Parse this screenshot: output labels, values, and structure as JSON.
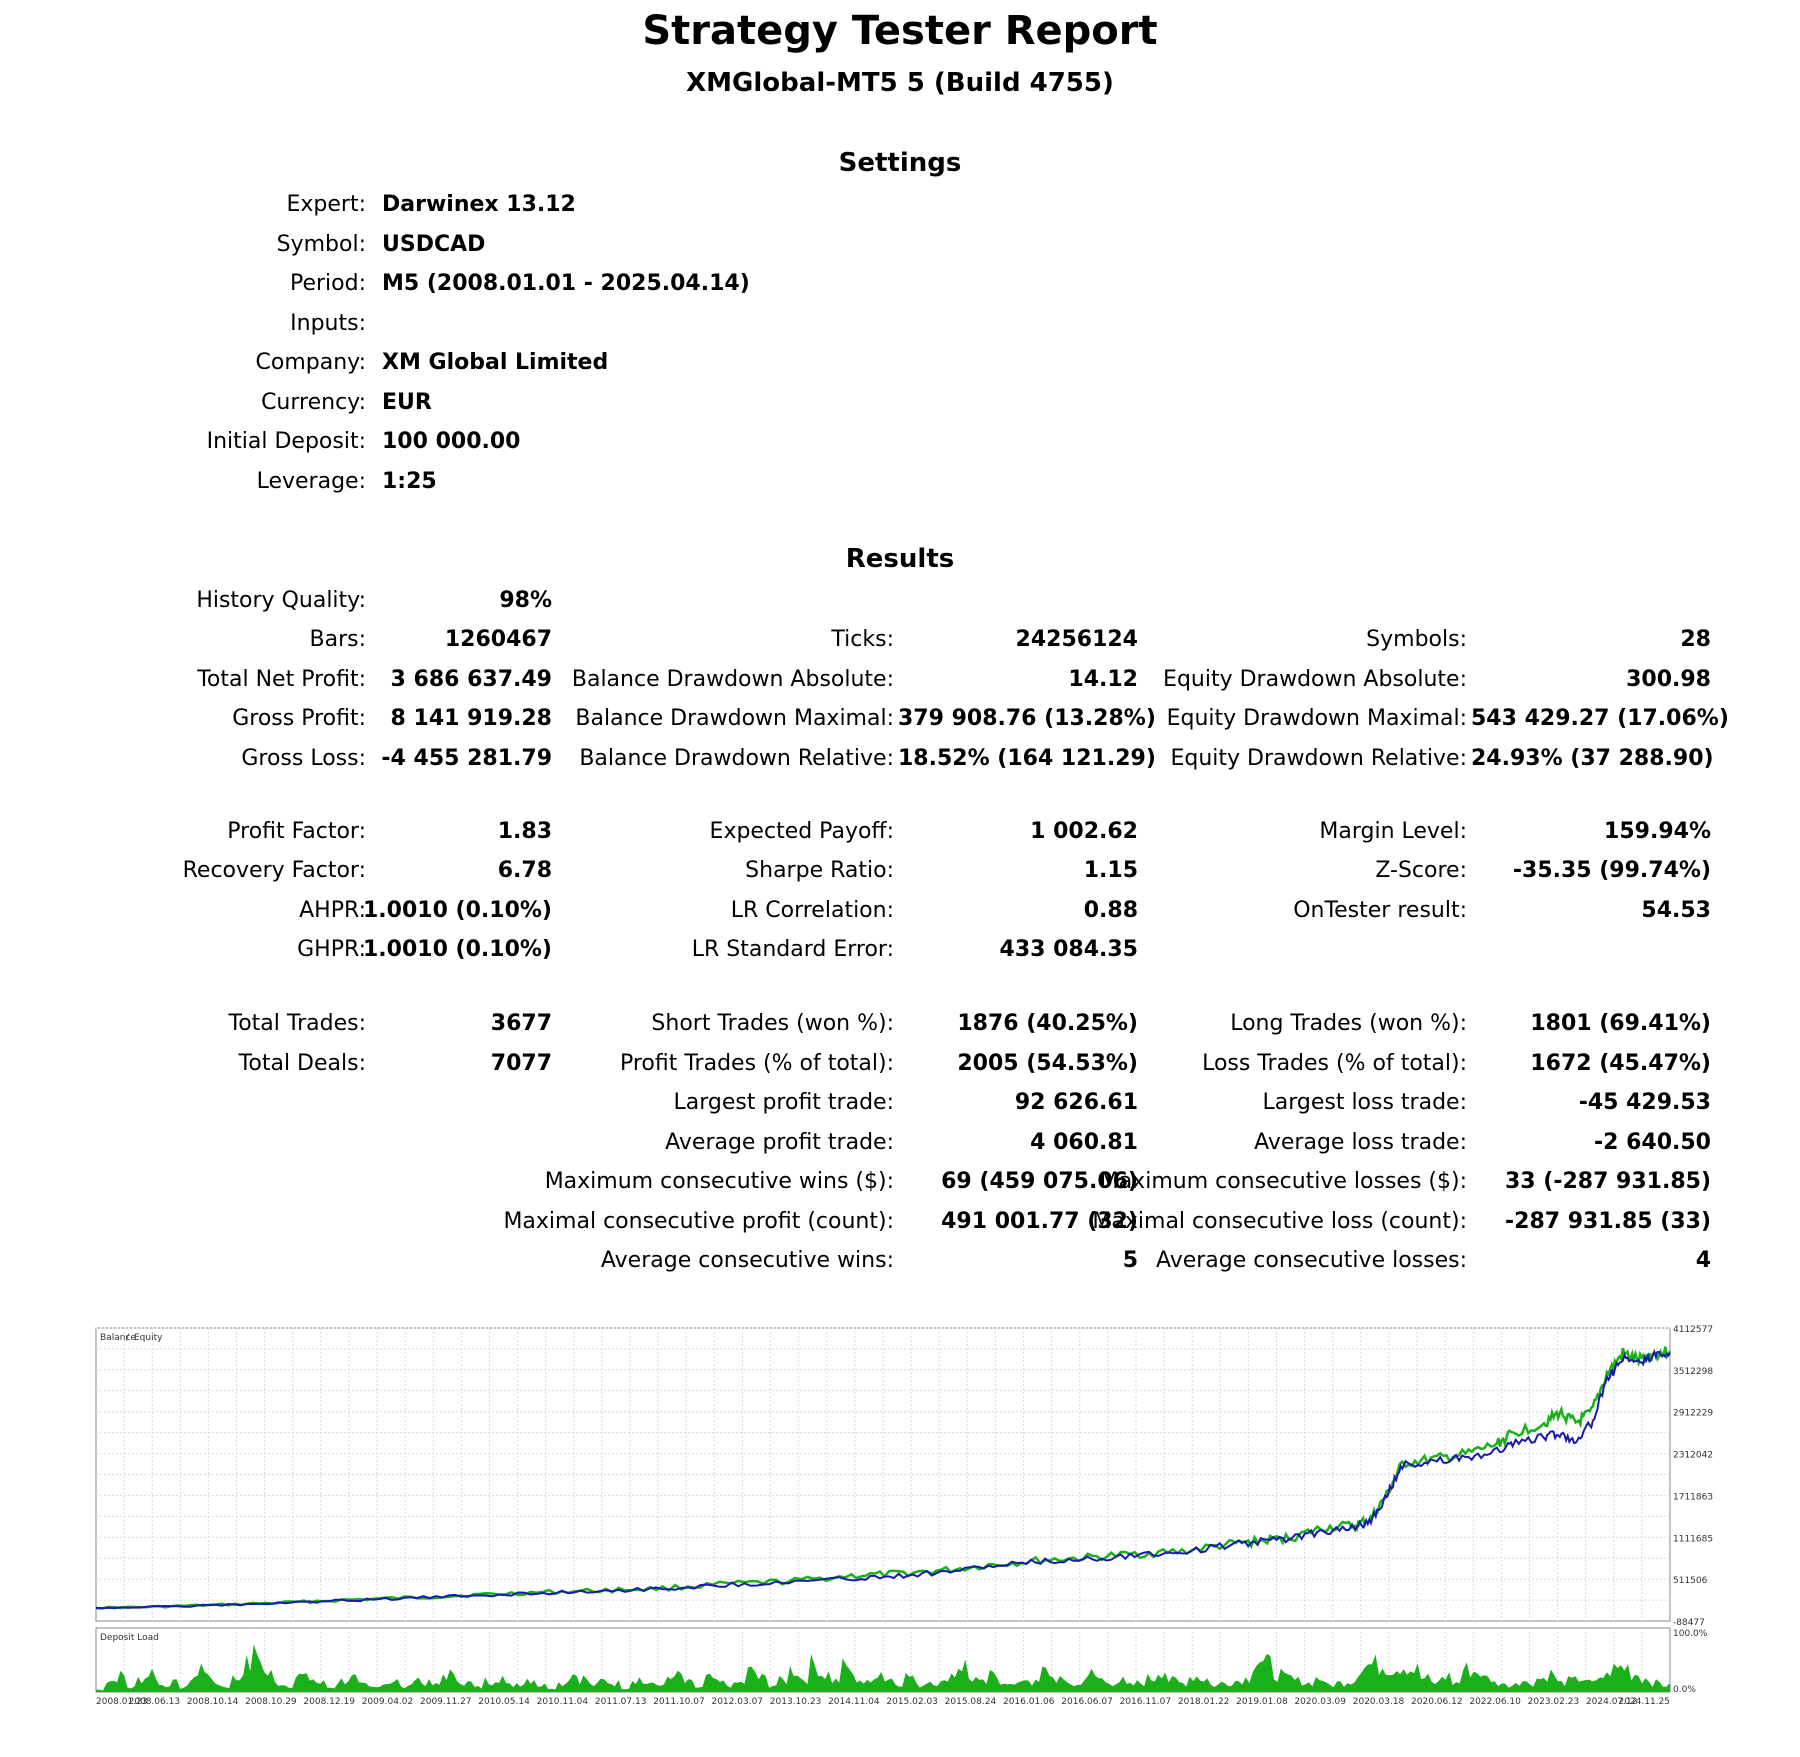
{
  "header": {
    "title": "Strategy Tester Report",
    "subtitle": "XMGlobal-MT5 5 (Build 4755)"
  },
  "settings": {
    "heading": "Settings",
    "rows": [
      {
        "label": "Expert:",
        "value": "Darwinex 13.12"
      },
      {
        "label": "Symbol:",
        "value": "USDCAD"
      },
      {
        "label": "Period:",
        "value": "M5 (2008.01.01 - 2025.04.14)"
      },
      {
        "label": "Inputs:",
        "value": ""
      },
      {
        "label": "Company:",
        "value": "XM Global Limited"
      },
      {
        "label": "Currency:",
        "value": "EUR"
      },
      {
        "label": "Initial Deposit:",
        "value": "100 000.00"
      },
      {
        "label": "Leverage:",
        "value": "1:25"
      }
    ]
  },
  "results": {
    "heading": "Results",
    "col1": [
      {
        "label": "History Quality:",
        "value": "98%"
      },
      {
        "label": "Bars:",
        "value": "1260467"
      },
      {
        "label": "Total Net Profit:",
        "value": "3 686 637.49"
      },
      {
        "label": "Gross Profit:",
        "value": "8 141 919.28"
      },
      {
        "label": "Gross Loss:",
        "value": "-4 455 281.79"
      },
      {
        "label": "Profit Factor:",
        "value": "1.83"
      },
      {
        "label": "Recovery Factor:",
        "value": "6.78"
      },
      {
        "label": "AHPR:",
        "value": "1.0010 (0.10%)"
      },
      {
        "label": "GHPR:",
        "value": "1.0010 (0.10%)"
      },
      {
        "label": "Total Trades:",
        "value": "3677"
      },
      {
        "label": "Total Deals:",
        "value": "7077"
      }
    ],
    "col2": [
      {
        "label": "Ticks:",
        "value": "24256124"
      },
      {
        "label": "Balance Drawdown Absolute:",
        "value": "14.12"
      },
      {
        "label": "Balance Drawdown Maximal:",
        "value": "379 908.76 (13.28%)"
      },
      {
        "label": "Balance Drawdown Relative:",
        "value": "18.52% (164 121.29)"
      },
      {
        "label": "Expected Payoff:",
        "value": "1 002.62"
      },
      {
        "label": "Sharpe Ratio:",
        "value": "1.15"
      },
      {
        "label": "LR Correlation:",
        "value": "0.88"
      },
      {
        "label": "LR Standard Error:",
        "value": "433 084.35"
      },
      {
        "label": "Short Trades (won %):",
        "value": "1876 (40.25%)"
      },
      {
        "label": "Profit Trades (% of total):",
        "value": "2005 (54.53%)"
      },
      {
        "label": "Largest profit trade:",
        "value": "92 626.61"
      },
      {
        "label": "Average profit trade:",
        "value": "4 060.81"
      },
      {
        "label": "Maximum consecutive wins ($):",
        "value": "69 (459 075.06)"
      },
      {
        "label": "Maximal consecutive profit (count):",
        "value": "491 001.77 (32)"
      },
      {
        "label": "Average consecutive wins:",
        "value": "5"
      }
    ],
    "col3": [
      {
        "label": "Symbols:",
        "value": "28"
      },
      {
        "label": "Equity Drawdown Absolute:",
        "value": "300.98"
      },
      {
        "label": "Equity Drawdown Maximal:",
        "value": "543 429.27 (17.06%)"
      },
      {
        "label": "Equity Drawdown Relative:",
        "value": "24.93% (37 288.90)"
      },
      {
        "label": "Margin Level:",
        "value": "159.94%"
      },
      {
        "label": "Z-Score:",
        "value": "-35.35 (99.74%)"
      },
      {
        "label": "OnTester result:",
        "value": "54.53"
      },
      {
        "label": "Long Trades (won %):",
        "value": "1801 (69.41%)"
      },
      {
        "label": "Loss Trades (% of total):",
        "value": "1672 (45.47%)"
      },
      {
        "label": "Largest loss trade:",
        "value": "-45 429.53"
      },
      {
        "label": "Average loss trade:",
        "value": "-2 640.50"
      },
      {
        "label": "Maximum consecutive losses ($):",
        "value": "33 (-287 931.85)"
      },
      {
        "label": "Maximal consecutive loss (count):",
        "value": "-287 931.85 (33)"
      },
      {
        "label": "Average consecutive losses:",
        "value": "4"
      }
    ]
  },
  "chart_data": {
    "type": "line",
    "legend": {
      "balance": "Balance",
      "separator": " / ",
      "equity": "Equity"
    },
    "legend_position": "top-left",
    "colors": {
      "balance": "#1a1aa8",
      "equity": "#19b019",
      "load": "#19b019",
      "grid": "#d9d9d9"
    },
    "grid": true,
    "ylim": [
      -88477,
      4112577
    ],
    "y_ticks": [
      "4112577",
      "3512298",
      "2912229",
      "2312042",
      "1711863",
      "1111685",
      "511506",
      "-88477"
    ],
    "x_ticks": [
      "2008.01.23",
      "2008.06.13",
      "2008.10.14",
      "2008.10.29",
      "2008.12.19",
      "2009.04.02",
      "2009.11.27",
      "2010.05.14",
      "2010.11.04",
      "2011.07.13",
      "2011.10.07",
      "2012.03.07",
      "2013.10.23",
      "2014.11.04",
      "2015.02.03",
      "2015.08.24",
      "2016.01.06",
      "2016.06.07",
      "2016.11.07",
      "2018.01.22",
      "2019.01.08",
      "2020.03.09",
      "2020.03.18",
      "2020.06.12",
      "2022.06.10",
      "2023.02.23",
      "2024.07.12",
      "2024.11.25"
    ],
    "balance_equity": [
      [
        0.0,
        100000,
        100000
      ],
      [
        0.04,
        115000,
        116000
      ],
      [
        0.08,
        140000,
        145000
      ],
      [
        0.12,
        170000,
        175000
      ],
      [
        0.16,
        205000,
        215000
      ],
      [
        0.2,
        240000,
        245000
      ],
      [
        0.24,
        275000,
        285000
      ],
      [
        0.28,
        310000,
        320000
      ],
      [
        0.32,
        345000,
        350000
      ],
      [
        0.36,
        375000,
        380000
      ],
      [
        0.4,
        430000,
        440000
      ],
      [
        0.44,
        470000,
        480000
      ],
      [
        0.48,
        520000,
        560000
      ],
      [
        0.51,
        560000,
        590000
      ],
      [
        0.54,
        620000,
        640000
      ],
      [
        0.57,
        700000,
        720000
      ],
      [
        0.6,
        760000,
        780000
      ],
      [
        0.63,
        800000,
        820000
      ],
      [
        0.66,
        860000,
        870000
      ],
      [
        0.69,
        900000,
        910000
      ],
      [
        0.72,
        1000000,
        1010000
      ],
      [
        0.74,
        1050000,
        1060000
      ],
      [
        0.76,
        1100000,
        1110000
      ],
      [
        0.78,
        1200000,
        1250000
      ],
      [
        0.8,
        1250000,
        1280000
      ],
      [
        0.81,
        1350000,
        1380000
      ],
      [
        0.82,
        1700000,
        1720000
      ],
      [
        0.83,
        2150000,
        2170000
      ],
      [
        0.85,
        2200000,
        2230000
      ],
      [
        0.87,
        2250000,
        2300000
      ],
      [
        0.89,
        2350000,
        2450000
      ],
      [
        0.9,
        2450000,
        2600000
      ],
      [
        0.92,
        2550000,
        2750000
      ],
      [
        0.93,
        2600000,
        2900000
      ],
      [
        0.94,
        2500000,
        2750000
      ],
      [
        0.95,
        2750000,
        2900000
      ],
      [
        0.96,
        3350000,
        3450000
      ],
      [
        0.97,
        3700000,
        3750000
      ],
      [
        0.98,
        3600000,
        3650000
      ],
      [
        0.99,
        3720000,
        3740000
      ],
      [
        1.0,
        3760000,
        3780000
      ]
    ],
    "deposit_load_label": "Deposit Load",
    "load_ticks": [
      "100.0%",
      "0.0%"
    ],
    "deposit_load": [
      0.05,
      0.25,
      0.35,
      0.1,
      0.3,
      0.45,
      0.15,
      0.2,
      0.1,
      0.35,
      0.55,
      0.2,
      0.12,
      0.3,
      0.6,
      0.85,
      0.4,
      0.2,
      0.15,
      0.35,
      0.3,
      0.2,
      0.1,
      0.25,
      0.3,
      0.15,
      0.1,
      0.2,
      0.25,
      0.1,
      0.3,
      0.2,
      0.15,
      0.4,
      0.3,
      0.2,
      0.1,
      0.25,
      0.35,
      0.15,
      0.2,
      0.3,
      0.15,
      0.1,
      0.2,
      0.4,
      0.3,
      0.15,
      0.25,
      0.2,
      0.1,
      0.3,
      0.2,
      0.15,
      0.25,
      0.35,
      0.2,
      0.1,
      0.3,
      0.2,
      0.15,
      0.2,
      0.45,
      0.3,
      0.15,
      0.25,
      0.5,
      0.3,
      0.6,
      0.4,
      0.25,
      0.55,
      0.3,
      0.2,
      0.45,
      0.3,
      0.2,
      0.35,
      0.15,
      0.25,
      0.2,
      0.4,
      0.6,
      0.3,
      0.2,
      0.35,
      0.25,
      0.15,
      0.3,
      0.2,
      0.45,
      0.3,
      0.2,
      0.15,
      0.4,
      0.3,
      0.2,
      0.25,
      0.15,
      0.2,
      0.3,
      0.5,
      0.25,
      0.2,
      0.35,
      0.3,
      0.15,
      0.2,
      0.25,
      0.3,
      0.7,
      0.6,
      0.4,
      0.3,
      0.25,
      0.2,
      0.3,
      0.15,
      0.2,
      0.25,
      0.55,
      0.6,
      0.6,
      0.55,
      0.6,
      0.5,
      0.3,
      0.2,
      0.35,
      0.2,
      0.5,
      0.45,
      0.3,
      0.2,
      0.15,
      0.25,
      0.2,
      0.3,
      0.4,
      0.2,
      0.25,
      0.3,
      0.2,
      0.35,
      0.5,
      0.55,
      0.4,
      0.3,
      0.2,
      0.15
    ]
  }
}
